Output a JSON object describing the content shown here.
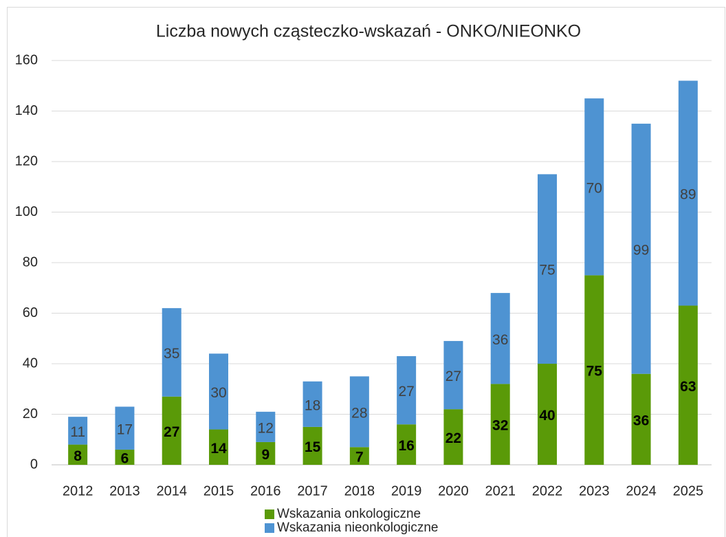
{
  "chart_data": {
    "type": "bar",
    "stacked": true,
    "title": "Liczba nowych cząsteczko-wskazań - ONKO/NIEONKO",
    "categories": [
      "2012",
      "2013",
      "2014",
      "2015",
      "2016",
      "2017",
      "2018",
      "2019",
      "2020",
      "2021",
      "2022",
      "2023",
      "2024",
      "2025"
    ],
    "series": [
      {
        "name": "Wskazania onkologiczne",
        "color": "#5a9a08",
        "values": [
          8,
          6,
          27,
          14,
          9,
          15,
          7,
          16,
          22,
          32,
          40,
          75,
          36,
          63
        ]
      },
      {
        "name": "Wskazania nieonkologiczne",
        "color": "#4e93d2",
        "values": [
          11,
          17,
          35,
          30,
          12,
          18,
          28,
          27,
          27,
          36,
          75,
          70,
          99,
          89
        ]
      }
    ],
    "ylim": [
      0,
      160
    ],
    "yticks": [
      0,
      20,
      40,
      60,
      80,
      100,
      120,
      140,
      160
    ],
    "grid": true,
    "legend": "bottom"
  }
}
